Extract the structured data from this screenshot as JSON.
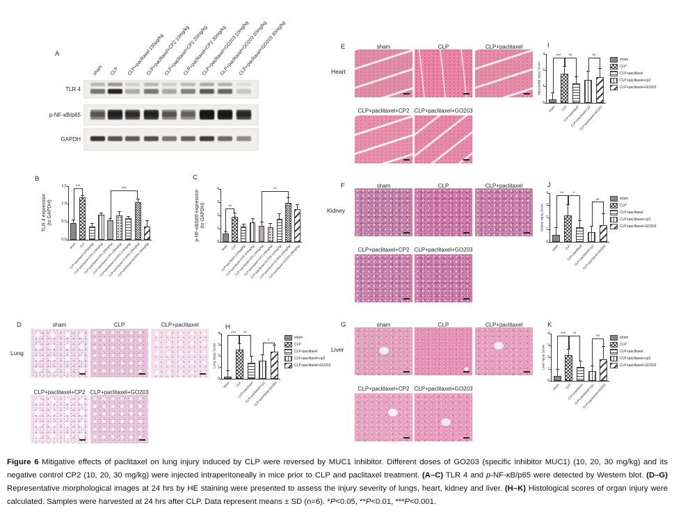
{
  "blot": {
    "panel_label": "A",
    "lanes": [
      "sham",
      "CLP",
      "CLP+paclitaxel 150μg/kg",
      "CLP+paclitaxel+CP2 10mg/kg",
      "CLP+paclitaxel+CP2 20mg/kg",
      "CLP+paclitaxel+CP2 30mg/kg",
      "CLP+paclitaxel+GO203 10mg/kg",
      "CLP+paclitaxel+GO203 20mg/kg",
      "CLP+paclitaxel+GO203 30mg/kg"
    ],
    "rows": [
      {
        "label": "TLR 4",
        "intensities": [
          0.55,
          0.92,
          0.3,
          0.55,
          0.32,
          0.5,
          0.68,
          0.62,
          0.18
        ]
      },
      {
        "label": "p-NF-κB/p65",
        "intensities": [
          0.5,
          0.85,
          0.72,
          0.82,
          0.5,
          0.45,
          0.95,
          0.92,
          0.78
        ]
      },
      {
        "label": "GAPDH",
        "intensities": [
          0.85,
          0.7,
          0.68,
          0.72,
          0.55,
          0.65,
          0.82,
          0.6,
          0.45
        ]
      }
    ]
  },
  "legend": {
    "entries": [
      "sham",
      "CLP",
      "CLP+paclitaxel",
      "CLP+paclitaxel+cp2",
      "CLP+paclitaxel+GO203"
    ]
  },
  "chart_data": [
    {
      "id": "B",
      "panel_label": "B",
      "type": "bar",
      "ylabel": "TLR 4 expression\n(to GAPDH)",
      "categories": [
        "sham",
        "CLP",
        "CLP+paclitaxel (150μg/kg)",
        "CLP+paclitaxel+CP2 (10mg/kg)",
        "CLP+paclitaxel+CP2 (20mg/kg)",
        "CLP+paclitaxel+CP2 (30mg/kg)",
        "CLP+paclitaxel+GO203 (10mg/kg)",
        "CLP+paclitaxel+GO203 (20mg/kg)",
        "CLP+paclitaxel+GO203 (30mg/kg)"
      ],
      "values": [
        0.46,
        1.18,
        0.38,
        0.7,
        0.54,
        0.68,
        0.61,
        1.05,
        0.38
      ],
      "errors": [
        0.08,
        0.05,
        0.07,
        0.05,
        0.04,
        0.1,
        0.04,
        0.08,
        0.14
      ],
      "ylim": [
        0,
        1.5
      ],
      "yticks": [
        "0.0",
        "0.5",
        "1.0",
        "1.5"
      ],
      "significance": [
        {
          "from": 0,
          "to": 1,
          "label": "***",
          "height": 1.44
        },
        {
          "from": 4,
          "to": 7,
          "label": "***",
          "height": 1.38
        }
      ],
      "patterns": [
        "diagdark",
        "checker",
        "hlines",
        "vlines",
        "speck",
        "dots",
        "hlines",
        "checkerfine",
        "diagbold"
      ],
      "legend": false
    },
    {
      "id": "C",
      "panel_label": "C",
      "type": "bar",
      "ylabel": "p-NF-κB/p65 expression\n(to GAPDH)",
      "categories": [
        "sham",
        "CLP",
        "CLP+paclitaxel (150μg/kg)",
        "CLP+paclitaxel+CP2 (10mg/kg)",
        "CLP+paclitaxel+CP2 (20mg/kg)",
        "CLP+paclitaxel+CP2 (30mg/kg)",
        "CLP+paclitaxel+GO203 (10mg/kg)",
        "CLP+paclitaxel+GO203 (20mg/kg)",
        "CLP+paclitaxel+GO203 (30mg/kg)"
      ],
      "values": [
        0.65,
        1.9,
        1.15,
        1.5,
        1.2,
        1.1,
        1.75,
        2.95,
        2.45
      ],
      "errors": [
        0.08,
        0.25,
        0.15,
        0.25,
        0.3,
        0.25,
        0.35,
        0.35,
        0.35
      ],
      "ylim": [
        0,
        4
      ],
      "yticks": [
        "0",
        "1",
        "2",
        "3",
        "4"
      ],
      "significance": [
        {
          "from": 0,
          "to": 1,
          "label": "**",
          "height": 2.55
        },
        {
          "from": 4,
          "to": 7,
          "label": "**",
          "height": 3.85
        }
      ],
      "patterns": [
        "diagdark",
        "checker",
        "hlines",
        "vlines",
        "speck",
        "dots",
        "hlines",
        "checkerfine",
        "diagbold"
      ],
      "legend": false
    },
    {
      "id": "H",
      "panel_label": "H",
      "type": "bar",
      "ylabel": "Lung Injury Score",
      "categories": [
        "sham",
        "CLP",
        "CLP+paclitaxel",
        "CLP+paclitaxel+cp2",
        "CLP+paclitaxel+GO203"
      ],
      "values": [
        0.2,
        2.6,
        1.4,
        1.6,
        2.4
      ],
      "errors": [
        0.45,
        0.5,
        0.55,
        0.5,
        0.55
      ],
      "ylim": [
        0,
        4
      ],
      "yticks": [
        "0",
        "1",
        "2",
        "3",
        "4"
      ],
      "significance": [
        {
          "from": 0,
          "to": 1,
          "label": "***",
          "height": 3.85
        },
        {
          "from": 1,
          "to": 2,
          "label": "**",
          "height": 3.85
        },
        {
          "from": 3,
          "to": 4,
          "label": "*",
          "height": 3.2
        }
      ],
      "patterns": [
        "diagdark",
        "checker",
        "hlines",
        "vlines",
        "diagbold"
      ],
      "legend": true
    },
    {
      "id": "I",
      "panel_label": "I",
      "type": "bar",
      "ylabel": "Myocardial Injury Score",
      "categories": [
        "sham",
        "CLP",
        "CLP+paclitaxel",
        "CLP+paclitaxel+cp2",
        "CLP+paclitaxel+GO203"
      ],
      "values": [
        0.2,
        1.8,
        1.2,
        1.4,
        1.6
      ],
      "errors": [
        0.4,
        0.45,
        0.4,
        0.55,
        0.5
      ],
      "ylim": [
        0,
        3
      ],
      "yticks": [
        "0",
        "1",
        "2",
        "3"
      ],
      "significance": [
        {
          "from": 0,
          "to": 1,
          "label": "***",
          "height": 2.8
        },
        {
          "from": 1,
          "to": 2,
          "label": "ns",
          "height": 2.8
        },
        {
          "from": 3,
          "to": 4,
          "label": "ns",
          "height": 2.8
        }
      ],
      "patterns": [
        "diagdark",
        "checker",
        "hlines",
        "vlines",
        "diagbold"
      ],
      "legend": true
    },
    {
      "id": "J",
      "panel_label": "J",
      "type": "bar",
      "ylabel": "Kidney Injury Score",
      "categories": [
        "sham",
        "CLP",
        "CLP+paclitaxel",
        "CLP+paclitaxel+cp2",
        "CLP+paclitaxel+GO203"
      ],
      "values": [
        0.6,
        2.2,
        1.2,
        0.8,
        1.4
      ],
      "errors": [
        0.55,
        0.85,
        0.5,
        0.45,
        0.9
      ],
      "ylim": [
        0,
        4
      ],
      "yticks": [
        "0",
        "1",
        "2",
        "3",
        "4"
      ],
      "significance": [
        {
          "from": 0,
          "to": 1,
          "label": "**",
          "height": 3.85
        },
        {
          "from": 1,
          "to": 2,
          "label": "*",
          "height": 3.85
        },
        {
          "from": 3,
          "to": 4,
          "label": "ns",
          "height": 3.3
        }
      ],
      "patterns": [
        "diagdark",
        "checker",
        "hlines",
        "vlines",
        "diagbold"
      ],
      "legend": true
    },
    {
      "id": "K",
      "panel_label": "K",
      "type": "bar",
      "ylabel": "Liver Injury Score",
      "categories": [
        "sham",
        "CLP",
        "CLP+paclitaxel",
        "CLP+paclitaxel+cp2",
        "CLP+paclitaxel+GO203"
      ],
      "values": [
        0.4,
        2.2,
        1.2,
        0.8,
        1.8
      ],
      "errors": [
        0.55,
        0.45,
        0.45,
        0.45,
        1.1
      ],
      "ylim": [
        0,
        4
      ],
      "yticks": [
        "0",
        "1",
        "2",
        "3",
        "4"
      ],
      "significance": [
        {
          "from": 0,
          "to": 1,
          "label": "***",
          "height": 3.85
        },
        {
          "from": 1,
          "to": 2,
          "label": "**",
          "height": 3.85
        },
        {
          "from": 3,
          "to": 4,
          "label": "ns",
          "height": 3.6
        }
      ],
      "patterns": [
        "diagdark",
        "checker",
        "hlines",
        "vlines",
        "diagbold"
      ],
      "legend": true
    }
  ],
  "histology": [
    {
      "panel_label": "D",
      "organ": "Lung",
      "top_labels": [
        "sham",
        "CLP",
        "CLP+paclitaxel"
      ],
      "bottom_labels": [
        "CLP+paclitaxel+CP2",
        "CLP+paclitaxel+GO203"
      ]
    },
    {
      "panel_label": "E",
      "organ": "Heart",
      "top_labels": [
        "sham",
        "CLP",
        "CLP+paclitaxel"
      ],
      "bottom_labels": [
        "CLP+paclitaxel+CP2",
        "CLP+paclitaxel+GO203"
      ]
    },
    {
      "panel_label": "F",
      "organ": "Kidney",
      "top_labels": [
        "sham",
        "CLP",
        "CLP+paclitaxel"
      ],
      "bottom_labels": [
        "CLP+paclitaxel+CP2",
        "CLP+paclitaxel+GO203"
      ]
    },
    {
      "panel_label": "G",
      "organ": "Liver",
      "top_labels": [
        "sham",
        "CLP",
        "CLP+paclitaxel"
      ],
      "bottom_labels": [
        "CLP+paclitaxel+CP2",
        "CLP+paclitaxel+GO203"
      ]
    }
  ],
  "stain_colors": {
    "eosin_pink": "#e18fa9",
    "hematoxylin_purple": "#8c5190",
    "lung_background": "#f0e2eb"
  },
  "caption": {
    "segments": [
      {
        "t": "Figure 6 ",
        "b": true
      },
      {
        "t": "Mitigative effects of paclitaxel on lung injury induced by CLP were reversed by MUC1 inhibitor. Different doses of GO203 (specific inhibitor MUC1) (10, 20, 30 mg/kg) and its negative control CP2 (10, 20, 30 mg/kg) were injected intraperitoneally in mice prior to CLP and paclitaxel treatment. "
      },
      {
        "t": "(A–C)",
        "b": true
      },
      {
        "t": " TLR 4 and "
      },
      {
        "t": "p",
        "i": true
      },
      {
        "t": "-NF-κB/p65 were detected by Western blot. "
      },
      {
        "t": "(D–G)",
        "b": true
      },
      {
        "t": " Representative morphological images at 24 hrs by HE staining were presented to assess the injury severity of lungs, heart, kidney and liver. "
      },
      {
        "t": "(H–K)",
        "b": true
      },
      {
        "t": " Histological scores of organ injury were calculated. Samples were harvested at 24 hrs after CLP. Data represent means ± SD (n=6). *"
      },
      {
        "t": "P",
        "i": true
      },
      {
        "t": "<0.05, **"
      },
      {
        "t": "P",
        "i": true
      },
      {
        "t": "<0.01, ***"
      },
      {
        "t": "P",
        "i": true
      },
      {
        "t": "<0.001."
      }
    ]
  }
}
